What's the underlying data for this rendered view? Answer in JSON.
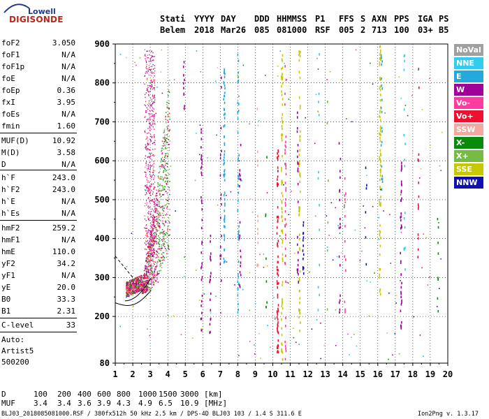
{
  "logo": {
    "line1": "Lowell",
    "line2": "DIGISONDE"
  },
  "header": {
    "row1": [
      "Stati",
      "YYYY",
      "DAY",
      "DDD",
      "HHMMSS",
      "P1",
      "FFS",
      "S",
      "AXN",
      "PPS",
      "IGA",
      "PS"
    ],
    "row2": [
      "Belem",
      "2018",
      "Mar26",
      "085",
      "081000",
      "RSF",
      "005",
      "2",
      "713",
      "100",
      "03+",
      "B5"
    ]
  },
  "params": [
    {
      "k": "foF2",
      "v": "3.050"
    },
    {
      "k": "foF1",
      "v": "N/A"
    },
    {
      "k": "foF1p",
      "v": "N/A"
    },
    {
      "k": "foE",
      "v": "N/A"
    },
    {
      "k": "foEp",
      "v": "0.36"
    },
    {
      "k": "fxI",
      "v": "3.95"
    },
    {
      "k": "foEs",
      "v": "N/A"
    },
    {
      "k": "fmin",
      "v": "1.60"
    },
    {
      "k": "MUF(D)",
      "v": "10.92"
    },
    {
      "k": "M(D)",
      "v": "3.58"
    },
    {
      "k": "D",
      "v": "N/A"
    },
    {
      "k": "h`F",
      "v": "243.0"
    },
    {
      "k": "h`F2",
      "v": "243.0"
    },
    {
      "k": "h`E",
      "v": "N/A"
    },
    {
      "k": "h`Es",
      "v": "N/A"
    },
    {
      "k": "hmF2",
      "v": "259.2"
    },
    {
      "k": "hmF1",
      "v": "N/A"
    },
    {
      "k": "hmE",
      "v": "110.0"
    },
    {
      "k": "yF2",
      "v": "34.2"
    },
    {
      "k": "yF1",
      "v": "N/A"
    },
    {
      "k": "yE",
      "v": "20.0"
    },
    {
      "k": "B0",
      "v": "33.3"
    },
    {
      "k": "B1",
      "v": "2.31"
    },
    {
      "k": "C-level",
      "v": "33"
    }
  ],
  "auto": [
    "Auto:",
    "Artist5",
    "500200"
  ],
  "legend": [
    {
      "label": "NoVal",
      "color": "#a0a0a0"
    },
    {
      "label": "NNE",
      "color": "#33ccee"
    },
    {
      "label": "E",
      "color": "#22aadd"
    },
    {
      "label": "W",
      "color": "#a0009a"
    },
    {
      "label": "Vo-",
      "color": "#ff3aa0"
    },
    {
      "label": "Vo+",
      "color": "#ee1030"
    },
    {
      "label": "SSW",
      "color": "#f4a8a0"
    },
    {
      "label": "X-",
      "color": "#0a8a0a"
    },
    {
      "label": "X+",
      "color": "#77bb44"
    },
    {
      "label": "SSE",
      "color": "#c8c800"
    },
    {
      "label": "NNW",
      "color": "#1010b0"
    }
  ],
  "chart_data": {
    "type": "scatter",
    "xlim": [
      1,
      20
    ],
    "ylim": [
      80,
      900
    ],
    "x_ticks": [
      1,
      2,
      3,
      4,
      5,
      6,
      7,
      8,
      9,
      10,
      11,
      12,
      13,
      14,
      15,
      16,
      17,
      18,
      19,
      20
    ],
    "y_ticks": [
      80,
      200,
      300,
      400,
      500,
      600,
      700,
      800,
      900
    ]
  },
  "bottom": {
    "d_label": "D",
    "d_values": [
      "100",
      "200",
      "400",
      "600",
      "800",
      "1000",
      "1500",
      "3000",
      "[km]"
    ],
    "muf_label": "MUF",
    "muf_values": [
      "3.4",
      "3.4",
      "3.6",
      "3.9",
      "4.3",
      "4.9",
      "6.5",
      "10.9",
      "[MHz]"
    ]
  },
  "footer": {
    "left": "BLJ03_2018085081000.RSF / 380fx512h 50 kHz 2.5 km / DPS-4D BLJ03 103 / 1.4 S 311.6 E",
    "right": "Ion2Png v. 1.3.17"
  }
}
